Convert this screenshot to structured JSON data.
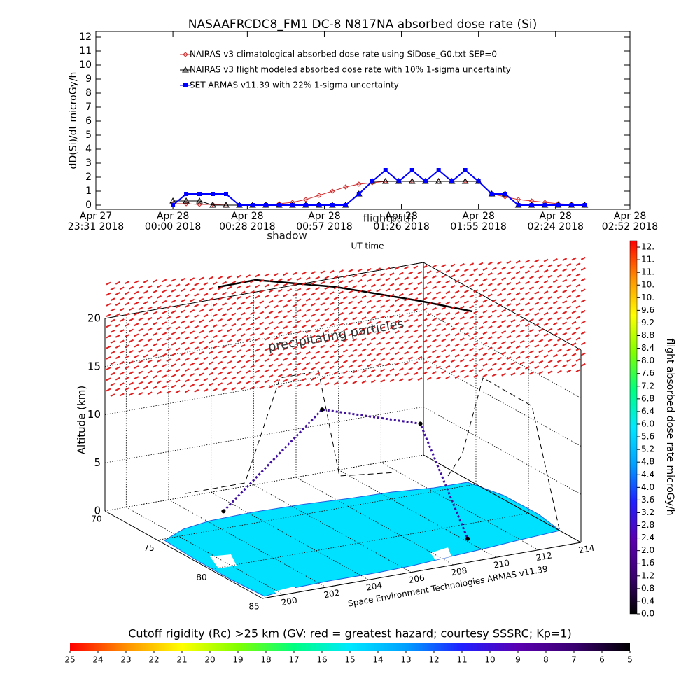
{
  "chart_data": [
    {
      "type": "line",
      "title": "NASAAFRCDC8_FM1 DC-8    N817NA absorbed dose rate (Si)",
      "ylabel": "dD(Si)/dt microGy/h",
      "xlabel": "UT time",
      "legend": "upper left",
      "xlim": [
        "2018-04-27 23:31",
        "2018-04-28 02:52"
      ],
      "xticks": [
        {
          "value": "2018-04-27 23:31",
          "label": "Apr 27\n23:31 2018"
        },
        {
          "value": "2018-04-28 00:00",
          "label": "Apr 28\n00:00 2018"
        },
        {
          "value": "2018-04-28 00:28",
          "label": "Apr 28\n00:28 2018"
        },
        {
          "value": "2018-04-28 00:57",
          "label": "Apr 28\n00:57 2018"
        },
        {
          "value": "2018-04-28 01:26",
          "label": "Apr 28\n01:26 2018"
        },
        {
          "value": "2018-04-28 01:55",
          "label": "Apr 28\n01:55 2018"
        },
        {
          "value": "2018-04-28 02:24",
          "label": "Apr 28\n02:24 2018"
        },
        {
          "value": "2018-04-28 02:52",
          "label": "Apr 28\n02:52 2018"
        }
      ],
      "ylim": [
        -0.3,
        12.4
      ],
      "yticks": [
        0,
        1,
        2,
        3,
        4,
        5,
        6,
        7,
        8,
        9,
        10,
        11,
        12
      ],
      "x": [
        "2018-04-28 00:00",
        "2018-04-28 00:05",
        "2018-04-28 00:10",
        "2018-04-28 00:15",
        "2018-04-28 00:20",
        "2018-04-28 00:25",
        "2018-04-28 00:30",
        "2018-04-28 00:35",
        "2018-04-28 00:40",
        "2018-04-28 00:45",
        "2018-04-28 00:50",
        "2018-04-28 00:55",
        "2018-04-28 01:00",
        "2018-04-28 01:05",
        "2018-04-28 01:10",
        "2018-04-28 01:15",
        "2018-04-28 01:20",
        "2018-04-28 01:25",
        "2018-04-28 01:30",
        "2018-04-28 01:35",
        "2018-04-28 01:40",
        "2018-04-28 01:45",
        "2018-04-28 01:50",
        "2018-04-28 01:55",
        "2018-04-28 02:00",
        "2018-04-28 02:05",
        "2018-04-28 02:10",
        "2018-04-28 02:15",
        "2018-04-28 02:20",
        "2018-04-28 02:25",
        "2018-04-28 02:30",
        "2018-04-28 02:35"
      ],
      "series": [
        {
          "name": "NAIRAS v3 climatological absorbed dose rate using SiDose_G0.txt SEP=0",
          "color": "#d03030",
          "marker": "diamond",
          "values": [
            0.1,
            0.1,
            0.05,
            0.05,
            0,
            0,
            0,
            0,
            0.1,
            0.2,
            0.4,
            0.7,
            1.0,
            1.3,
            1.5,
            1.6,
            1.7,
            1.7,
            1.7,
            1.7,
            1.7,
            1.7,
            1.7,
            1.7,
            0.8,
            0.6,
            0.4,
            0.3,
            0.2,
            0.1,
            0.05,
            0
          ]
        },
        {
          "name": "NAIRAS v3 flight modeled absorbed dose rate with 10% 1-sigma uncertainty",
          "color": "#000000",
          "marker": "triangle",
          "values": [
            0.3,
            0.3,
            0.3,
            0,
            0,
            0,
            0,
            0,
            0,
            0,
            0,
            0,
            0,
            0,
            0.8,
            1.7,
            1.7,
            1.7,
            1.7,
            1.7,
            1.7,
            1.7,
            1.7,
            1.7,
            0.8,
            0.8,
            0,
            0,
            0,
            0,
            0,
            0
          ]
        },
        {
          "name": "SET ARMAS v11.39 with 22% 1-sigma uncertainty",
          "color": "#0000ff",
          "marker": "square",
          "values": [
            0,
            0.8,
            0.8,
            0.8,
            0.8,
            0,
            0,
            0,
            0,
            0,
            0,
            0,
            0,
            0,
            0.8,
            1.7,
            2.5,
            1.7,
            2.5,
            1.7,
            2.5,
            1.7,
            2.5,
            1.7,
            0.8,
            0.8,
            0,
            0,
            0,
            0,
            0,
            0
          ]
        }
      ]
    },
    {
      "type": "flight3d",
      "zlabel": "Altitude (km)",
      "caption": "Space Environment Technologies ARMAS v11.39",
      "annotations": [
        "flightpath",
        "shadow",
        "precipitating particles"
      ],
      "xlim": [
        199,
        214
      ],
      "xticks": [
        200,
        202,
        204,
        206,
        208,
        210,
        212,
        214
      ],
      "ylim": [
        70,
        85
      ],
      "yticks": [
        70,
        75,
        80,
        85
      ],
      "zlim": [
        0,
        20
      ],
      "zticks": [
        0,
        5,
        10,
        15,
        20
      ],
      "path": {
        "color": "#4010a0",
        "lon": [
          203.1,
          207.1,
          209.7,
          210.0
        ],
        "lat": [
          73.0,
          74.3,
          78.4,
          82.3
        ],
        "alt": [
          0.2,
          10,
          10,
          0.3
        ]
      }
    },
    {
      "type": "colorbar",
      "title": "flight absorbed dose rate microGy/h",
      "ylim": [
        0,
        11.8
      ],
      "colormap": [
        "#000000",
        "#3a0070",
        "#5a00b0",
        "#2020ff",
        "#00a0ff",
        "#00e8ff",
        "#00ff80",
        "#80ff00",
        "#ffff00",
        "#ff9000",
        "#ff0000"
      ],
      "yticks": [
        {
          "value": 0,
          "label": "0.0"
        },
        0.4,
        0.8,
        1.2,
        1.6,
        {
          "value": 2,
          "label": "2.0"
        },
        2.4,
        2.8,
        3.2,
        3.6,
        {
          "value": 4,
          "label": "4.0"
        },
        4.4,
        4.8,
        5.2,
        5.6,
        {
          "value": 6,
          "label": "6.0"
        },
        6.4,
        6.8,
        7.2,
        7.6,
        {
          "value": 8,
          "label": "8.0"
        },
        8.4,
        8.8,
        9.2,
        9.6,
        {
          "value": 10.0,
          "label": "10."
        },
        {
          "value": 10.4,
          "label": "10."
        },
        {
          "value": 10.8,
          "label": "11."
        },
        {
          "value": 11.2,
          "label": "11."
        },
        {
          "value": 11.6,
          "label": "12."
        }
      ]
    },
    {
      "type": "colorbar",
      "title": "Cutoff rigidity (Rc) >25 km (GV: red = greatest hazard; courtesy SSSRC; Kp=1)",
      "xlim": [
        25,
        5
      ],
      "colormap": [
        "#000000",
        "#3a0070",
        "#5a00b0",
        "#2020ff",
        "#00a0ff",
        "#00e8ff",
        "#00ff80",
        "#80ff00",
        "#ffff00",
        "#ff9000",
        "#ff0000"
      ],
      "xticks": [
        25,
        24,
        23,
        22,
        21,
        20,
        19,
        18,
        17,
        16,
        15,
        14,
        13,
        12,
        11,
        10,
        9,
        8,
        7,
        6,
        5
      ]
    }
  ]
}
